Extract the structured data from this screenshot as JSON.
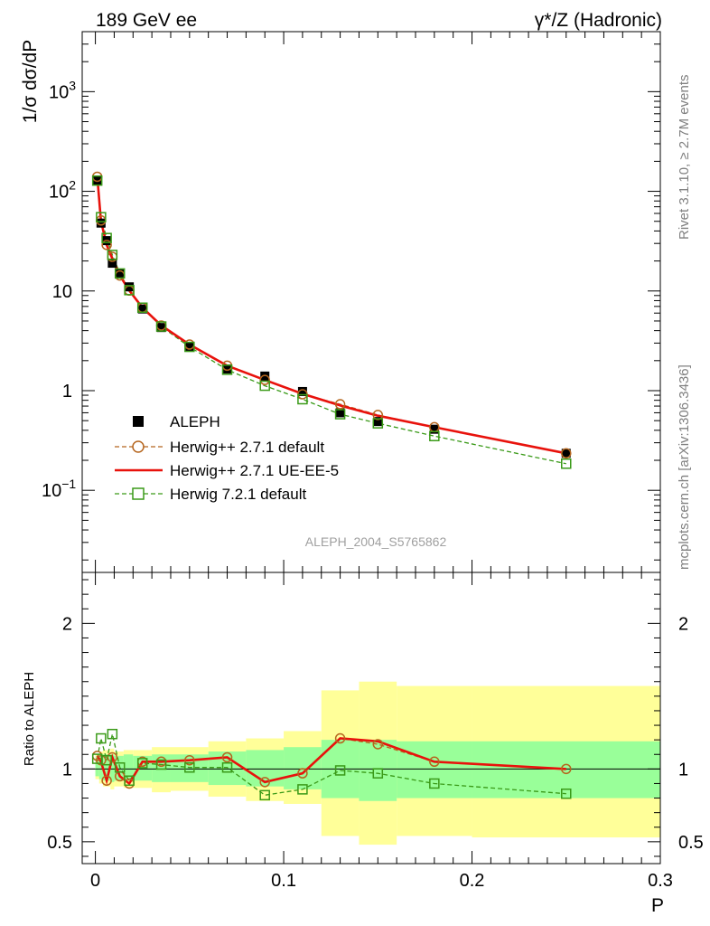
{
  "header": {
    "left": "189 GeV ee",
    "right": "γ*/Z (Hadronic)"
  },
  "side_labels": {
    "rivet": "Rivet 3.1.10, ≥ 2.7M events",
    "mcplots": "mcplots.cern.ch [arXiv:1306.3436]"
  },
  "watermark": "ALEPH_2004_S5765862",
  "colors": {
    "data": "#000000",
    "h271_default": "#b5651d",
    "h271_ueee5": "#e8120c",
    "h721": "#3a9a18",
    "band_inner": "#99ff99",
    "band_outer": "#ffff99"
  },
  "chart_data": [
    {
      "type": "scatter",
      "panel": "main",
      "ylabel": "1/σ  dσ/dP",
      "yscale": "log",
      "xlim": [
        -0.007,
        0.3
      ],
      "ylim": [
        0.015,
        4000
      ],
      "yticks": [
        {
          "value": 1000,
          "label": "10",
          "sup": "3"
        },
        {
          "value": 100,
          "label": "10",
          "sup": "2"
        },
        {
          "value": 10,
          "label": "10",
          "sup": ""
        },
        {
          "value": 1,
          "label": "1",
          "sup": ""
        },
        {
          "value": 0.1,
          "label": "10",
          "sup": "−1"
        }
      ],
      "legend_position": "middle-left",
      "x": [
        0.001,
        0.003,
        0.006,
        0.009,
        0.013,
        0.018,
        0.025,
        0.035,
        0.05,
        0.07,
        0.09,
        0.11,
        0.13,
        0.15,
        0.18,
        0.25
      ],
      "series": [
        {
          "name": "ALEPH",
          "style": "data",
          "values": [
            130,
            48,
            32,
            19,
            15,
            11,
            6.6,
            4.3,
            2.75,
            1.65,
            1.4,
            0.98,
            0.6,
            0.49,
            0.41,
            0.235
          ]
        },
        {
          "name": "Herwig++ 2.7.1 default",
          "style": "h271_default",
          "values": [
            140,
            51,
            29,
            22,
            14.3,
            10.1,
            6.8,
            4.5,
            2.9,
            1.78,
            1.28,
            0.92,
            0.73,
            0.57,
            0.43,
            0.235
          ]
        },
        {
          "name": "Herwig++ 2.7.1 UE-EE-5",
          "style": "h271_ueee5",
          "values": [
            140,
            50,
            29,
            21,
            14.3,
            10.1,
            6.8,
            4.5,
            2.9,
            1.78,
            1.28,
            0.93,
            0.71,
            0.56,
            0.43,
            0.235
          ]
        },
        {
          "name": "Herwig 7.2.1 default",
          "style": "h721",
          "values": [
            128,
            55,
            34,
            23,
            15,
            10.2,
            6.8,
            4.4,
            2.75,
            1.62,
            1.12,
            0.82,
            0.58,
            0.47,
            0.35,
            0.185
          ]
        }
      ]
    },
    {
      "type": "line",
      "panel": "ratio",
      "ylabel": "Ratio to ALEPH",
      "xlabel": "P",
      "ylim": [
        0.35,
        2.35
      ],
      "yticks": [
        {
          "value": 0.5,
          "label": "0.5"
        },
        {
          "value": 1,
          "label": "1"
        },
        {
          "value": 2,
          "label": "2"
        }
      ],
      "xticks": [
        {
          "value": 0,
          "label": "0"
        },
        {
          "value": 0.1,
          "label": "0.1"
        },
        {
          "value": 0.2,
          "label": "0.2"
        },
        {
          "value": 0.3,
          "label": "0.3"
        }
      ],
      "bins": [
        {
          "lo": 0.0,
          "hi": 0.002,
          "inner": [
            0.95,
            1.08
          ],
          "outer": [
            0.93,
            1.1
          ]
        },
        {
          "lo": 0.002,
          "hi": 0.004,
          "inner": [
            0.93,
            1.1
          ],
          "outer": [
            0.9,
            1.12
          ]
        },
        {
          "lo": 0.004,
          "hi": 0.008,
          "inner": [
            0.92,
            1.1
          ],
          "outer": [
            0.88,
            1.13
          ]
        },
        {
          "lo": 0.008,
          "hi": 0.01,
          "inner": [
            0.91,
            1.1
          ],
          "outer": [
            0.86,
            1.14
          ]
        },
        {
          "lo": 0.01,
          "hi": 0.015,
          "inner": [
            0.92,
            1.09
          ],
          "outer": [
            0.88,
            1.12
          ]
        },
        {
          "lo": 0.015,
          "hi": 0.02,
          "inner": [
            0.92,
            1.1
          ],
          "outer": [
            0.87,
            1.13
          ]
        },
        {
          "lo": 0.02,
          "hi": 0.03,
          "inner": [
            0.92,
            1.09
          ],
          "outer": [
            0.87,
            1.13
          ]
        },
        {
          "lo": 0.03,
          "hi": 0.04,
          "inner": [
            0.91,
            1.1
          ],
          "outer": [
            0.84,
            1.15
          ]
        },
        {
          "lo": 0.04,
          "hi": 0.06,
          "inner": [
            0.91,
            1.1
          ],
          "outer": [
            0.85,
            1.15
          ]
        },
        {
          "lo": 0.06,
          "hi": 0.08,
          "inner": [
            0.89,
            1.12
          ],
          "outer": [
            0.81,
            1.19
          ]
        },
        {
          "lo": 0.08,
          "hi": 0.1,
          "inner": [
            0.88,
            1.13
          ],
          "outer": [
            0.78,
            1.21
          ]
        },
        {
          "lo": 0.1,
          "hi": 0.12,
          "inner": [
            0.86,
            1.15
          ],
          "outer": [
            0.76,
            1.26
          ]
        },
        {
          "lo": 0.12,
          "hi": 0.14,
          "inner": [
            0.8,
            1.2
          ],
          "outer": [
            0.54,
            1.54
          ]
        },
        {
          "lo": 0.14,
          "hi": 0.16,
          "inner": [
            0.78,
            1.2
          ],
          "outer": [
            0.48,
            1.6
          ]
        },
        {
          "lo": 0.16,
          "hi": 0.2,
          "inner": [
            0.8,
            1.19
          ],
          "outer": [
            0.54,
            1.57
          ]
        },
        {
          "lo": 0.2,
          "hi": 0.3,
          "inner": [
            0.8,
            1.19
          ],
          "outer": [
            0.53,
            1.57
          ]
        }
      ],
      "x": [
        0.001,
        0.003,
        0.006,
        0.009,
        0.013,
        0.018,
        0.025,
        0.035,
        0.05,
        0.07,
        0.09,
        0.11,
        0.13,
        0.15,
        0.18,
        0.25
      ],
      "series": [
        {
          "name": "Herwig++ 2.7.1 default",
          "style": "h271_default",
          "values": [
            1.09,
            1.06,
            0.92,
            1.08,
            0.95,
            0.9,
            1.05,
            1.05,
            1.06,
            1.08,
            0.91,
            0.97,
            1.21,
            1.17,
            1.05,
            1.0
          ]
        },
        {
          "name": "Herwig++ 2.7.1 UE-EE-5",
          "style": "h271_ueee5",
          "values": [
            1.09,
            1.05,
            0.92,
            1.08,
            0.95,
            0.9,
            1.05,
            1.05,
            1.06,
            1.08,
            0.91,
            0.97,
            1.21,
            1.19,
            1.05,
            1.0
          ]
        },
        {
          "name": "Herwig 7.2.1 default",
          "style": "h721",
          "values": [
            1.07,
            1.21,
            1.06,
            1.24,
            1.01,
            0.92,
            1.04,
            1.03,
            1.01,
            1.01,
            0.82,
            0.86,
            0.99,
            0.97,
            0.9,
            0.83
          ]
        }
      ]
    }
  ]
}
